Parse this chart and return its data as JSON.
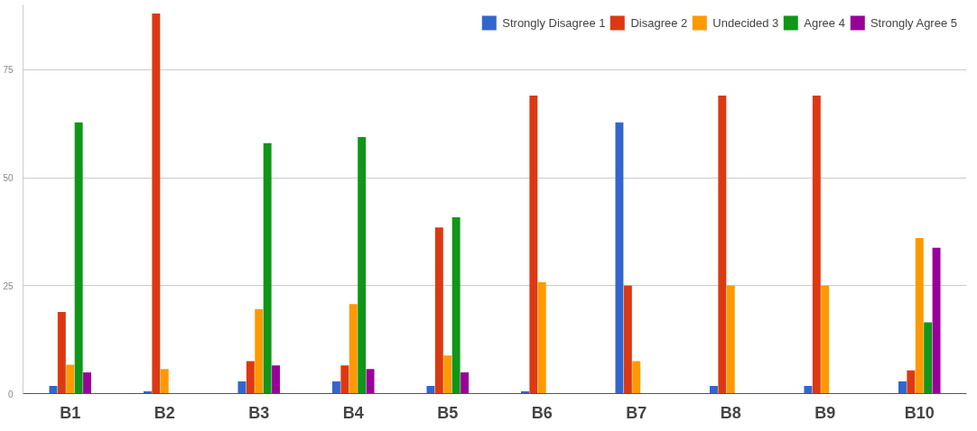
{
  "chart_data": {
    "type": "bar",
    "categories": [
      "B1",
      "B2",
      "B3",
      "B4",
      "B5",
      "B6",
      "B7",
      "B8",
      "B9",
      "B10"
    ],
    "series": [
      {
        "name": "Strongly Disagree 1",
        "color": "#3366cc",
        "values": [
          1.8,
          0.5,
          2.8,
          2.8,
          1.8,
          0.5,
          62.8,
          1.8,
          1.8,
          2.8
        ]
      },
      {
        "name": "Disagree 2",
        "color": "#dc3912",
        "values": [
          18.9,
          88,
          7.5,
          6.5,
          38.5,
          69,
          25,
          69,
          69,
          5.4
        ]
      },
      {
        "name": "Undecided 3",
        "color": "#ff9900",
        "values": [
          6.7,
          5.7,
          19.6,
          20.7,
          8.8,
          25.8,
          7.5,
          25,
          25,
          36
        ]
      },
      {
        "name": "Agree 4",
        "color": "#109618",
        "values": [
          62.8,
          0,
          58,
          59.4,
          40.8,
          0,
          0,
          0,
          0,
          16.5
        ]
      },
      {
        "name": "Strongly Agree 5",
        "color": "#990099",
        "values": [
          4.9,
          0,
          6.5,
          5.7,
          4.9,
          0,
          0,
          0,
          0,
          33.8
        ]
      }
    ],
    "ylim": [
      0,
      90
    ],
    "yticks": [
      0,
      25,
      50,
      75
    ],
    "grid": "y",
    "legend": "top"
  }
}
